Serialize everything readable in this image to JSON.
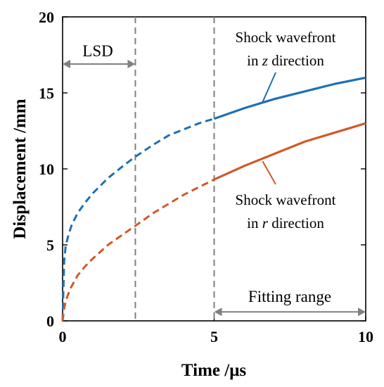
{
  "chart_data": {
    "type": "line",
    "xlabel": "Time /μs",
    "ylabel": "Displacement /mm",
    "xlim": [
      0,
      10
    ],
    "ylim": [
      0,
      20
    ],
    "x_ticks": [
      0,
      5,
      10
    ],
    "y_ticks": [
      0,
      5,
      10,
      15,
      20
    ],
    "grid": false,
    "box": true,
    "series": [
      {
        "color": "#1f6fb5",
        "solid_from_x": 5,
        "points": [
          [
            0,
            0
          ],
          [
            0.05,
            3.9
          ],
          [
            0.1,
            4.9
          ],
          [
            0.2,
            5.7
          ],
          [
            0.3,
            6.3
          ],
          [
            0.5,
            7.1
          ],
          [
            0.75,
            7.8
          ],
          [
            1,
            8.4
          ],
          [
            1.5,
            9.4
          ],
          [
            2,
            10.2
          ],
          [
            2.4,
            10.8
          ],
          [
            3,
            11.6
          ],
          [
            3.5,
            12.2
          ],
          [
            4,
            12.6
          ],
          [
            4.5,
            13.0
          ],
          [
            5,
            13.3
          ],
          [
            6,
            14.0
          ],
          [
            7,
            14.6
          ],
          [
            8,
            15.1
          ],
          [
            9,
            15.6
          ],
          [
            10,
            16.0
          ]
        ]
      },
      {
        "color": "#d2582a",
        "solid_from_x": 5,
        "points": [
          [
            0,
            0
          ],
          [
            0.05,
            0.8
          ],
          [
            0.1,
            1.3
          ],
          [
            0.25,
            2.1
          ],
          [
            0.5,
            3.0
          ],
          [
            0.75,
            3.6
          ],
          [
            1,
            4.1
          ],
          [
            1.5,
            5.0
          ],
          [
            2,
            5.7
          ],
          [
            2.5,
            6.4
          ],
          [
            3,
            7.1
          ],
          [
            3.5,
            7.7
          ],
          [
            4,
            8.3
          ],
          [
            4.5,
            8.8
          ],
          [
            5,
            9.3
          ],
          [
            6,
            10.2
          ],
          [
            7,
            11.0
          ],
          [
            8,
            11.8
          ],
          [
            9,
            12.4
          ],
          [
            10,
            13.0
          ]
        ]
      }
    ],
    "vlines": [
      2.4,
      5
    ],
    "annotations": {
      "lsd": {
        "text": "LSD",
        "x_from": 0,
        "x_to": 2.4,
        "y": 16.9
      },
      "fitting": {
        "text": "Fitting range",
        "x_from": 5,
        "x_to": 10,
        "y": 0.5
      },
      "z_label": {
        "line1": "Shock wavefront",
        "line2_pre": "in ",
        "line2_var": "z",
        "line2_post": " direction",
        "leader_x": 6.6,
        "leader_y": 14.4
      },
      "r_label": {
        "line1": "Shock wavefront",
        "line2_pre": "in ",
        "line2_var": "r",
        "line2_post": " direction",
        "leader_x": 6.6,
        "leader_y": 10.5
      }
    }
  }
}
